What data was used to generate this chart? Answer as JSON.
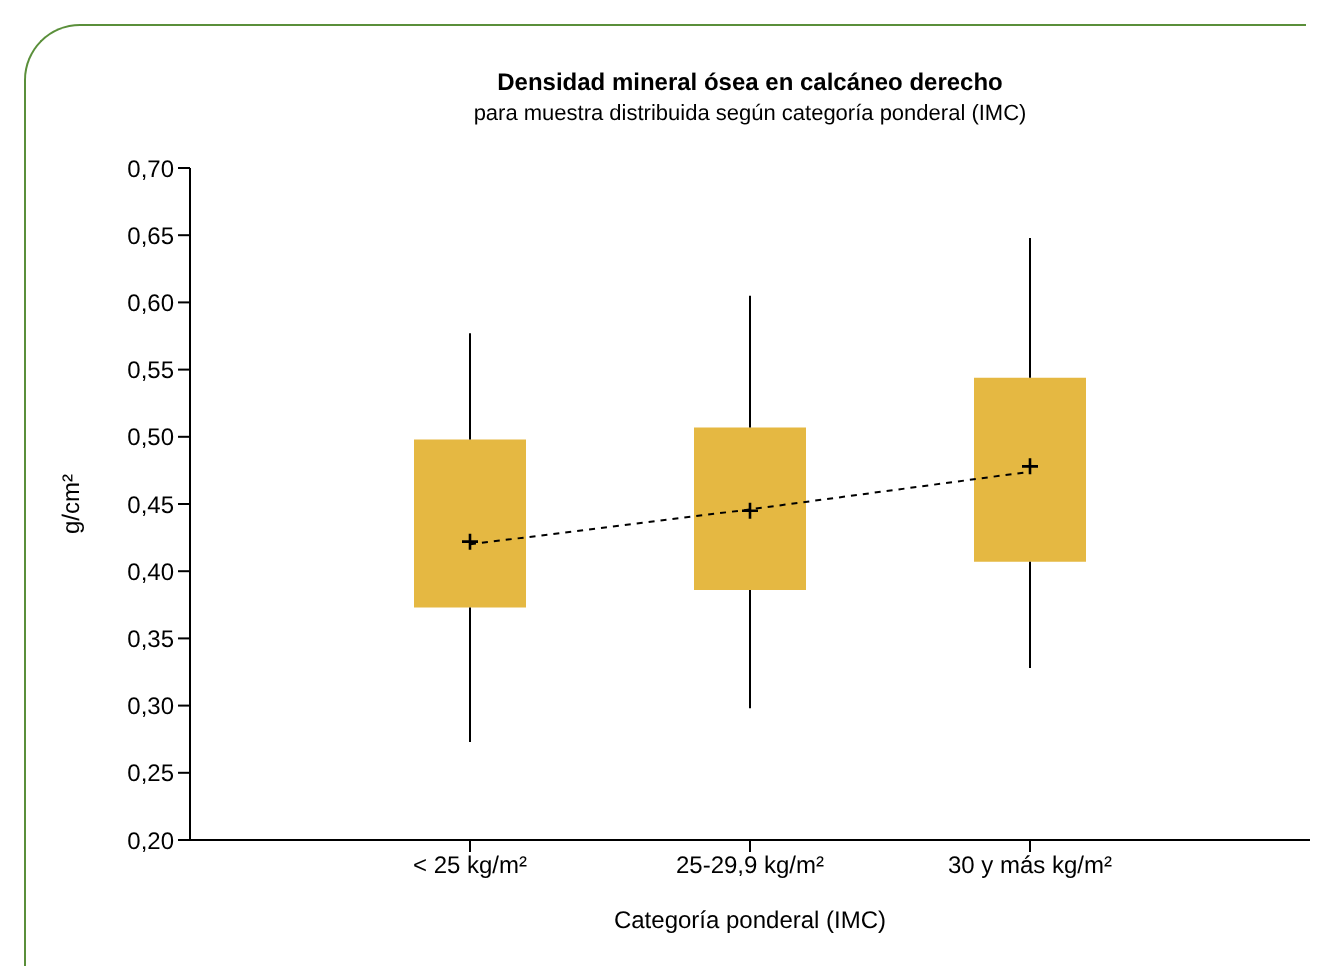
{
  "chart_data": {
    "type": "box",
    "title": "Densidad mineral ósea en calcáneo derecho",
    "subtitle": "para muestra distribuida según categoría ponderal (IMC)",
    "xlabel": "Categoría ponderal (IMC)",
    "ylabel": "g/cm²",
    "categories": [
      "< 25 kg/m²",
      "25-29,9 kg/m²",
      "30 y más kg/m²"
    ],
    "color": "#e5b842",
    "boxes": [
      {
        "low": 0.273,
        "q1": 0.373,
        "q3": 0.498,
        "high": 0.577,
        "mean": 0.422
      },
      {
        "low": 0.298,
        "q1": 0.386,
        "q3": 0.507,
        "high": 0.605,
        "mean": 0.445
      },
      {
        "low": 0.328,
        "q1": 0.407,
        "q3": 0.544,
        "high": 0.648,
        "mean": 0.478
      }
    ],
    "series": [
      {
        "type": "line",
        "color": "#000000",
        "line_style": "dashed",
        "values": [
          0.42,
          0.446,
          0.474
        ]
      }
    ],
    "ylim": [
      0.2,
      0.7
    ],
    "yticks": [
      {
        "value": 0.2,
        "label": "0,20"
      },
      {
        "value": 0.25,
        "label": "0,25"
      },
      {
        "value": 0.3,
        "label": "0,30"
      },
      {
        "value": 0.35,
        "label": "0,35"
      },
      {
        "value": 0.4,
        "label": "0,40"
      },
      {
        "value": 0.45,
        "label": "0,45"
      },
      {
        "value": 0.5,
        "label": "0,50"
      },
      {
        "value": 0.55,
        "label": "0,55"
      },
      {
        "value": 0.6,
        "label": "0,60"
      },
      {
        "value": 0.65,
        "label": "0,65"
      },
      {
        "value": 0.7,
        "label": "0,70"
      }
    ],
    "grid": false,
    "legend": false
  }
}
